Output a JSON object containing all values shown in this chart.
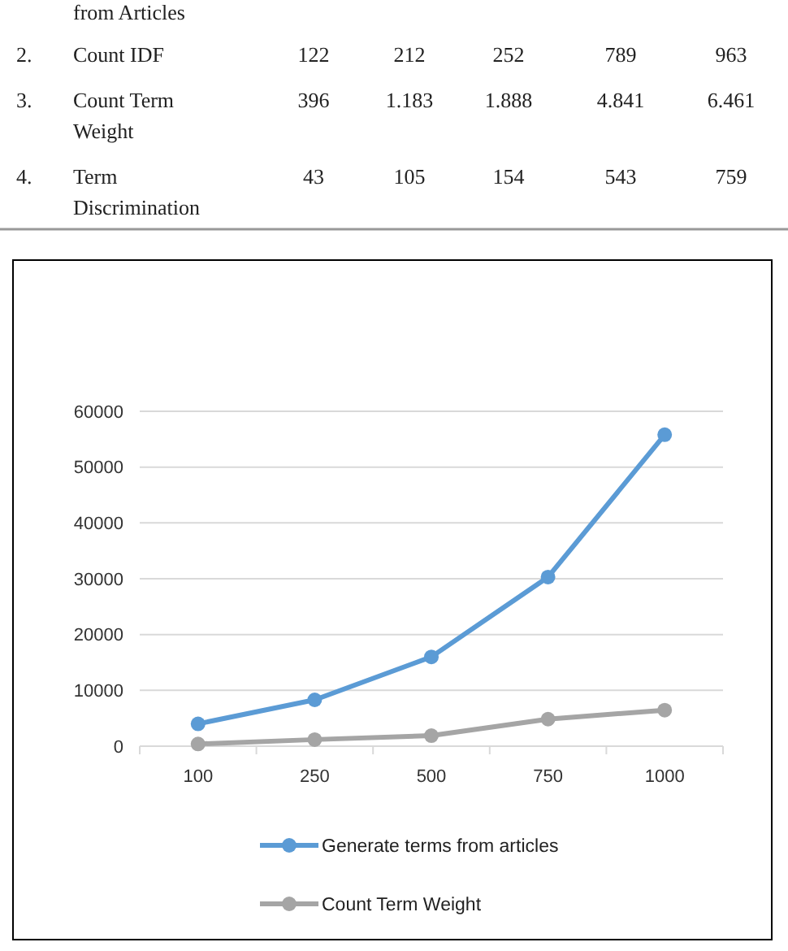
{
  "chart_data": {
    "type": "line",
    "categories": [
      "100",
      "250",
      "500",
      "750",
      "1000"
    ],
    "series": [
      {
        "name": "Generate terms from articles",
        "color": "#5b9bd5",
        "values": [
          4000,
          8300,
          16000,
          30300,
          55800
        ]
      },
      {
        "name": "Count Term Weight",
        "color": "#a5a5a5",
        "values": [
          396,
          1183,
          1888,
          4841,
          6461
        ]
      }
    ],
    "ylim": [
      0,
      60000
    ],
    "yticks": [
      0,
      10000,
      20000,
      30000,
      40000,
      50000,
      60000
    ],
    "grid": "y",
    "legend": "bottom",
    "marker": "circle",
    "line_style": "solid",
    "annotations": [
      "from Articles",
      "2.",
      "Count IDF",
      "122",
      "212",
      "252",
      "789",
      "963",
      "3.",
      "Count Term Weight",
      "396",
      "1.183",
      "1.888",
      "4.841",
      "6.461",
      "4.",
      "Term Discrimination",
      "43",
      "105",
      "154",
      "543",
      "759"
    ]
  }
}
